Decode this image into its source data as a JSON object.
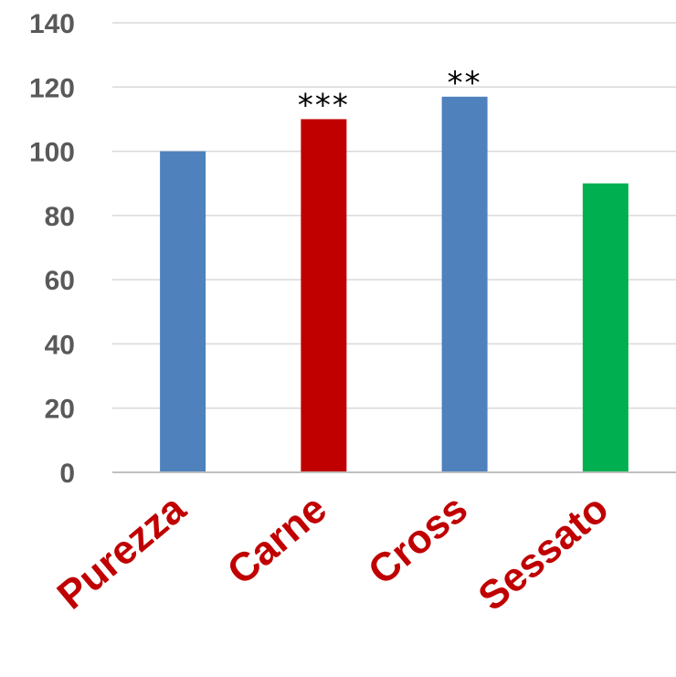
{
  "chart_data": {
    "type": "bar",
    "categories": [
      "Purezza",
      "Carne",
      "Cross",
      "Sessato"
    ],
    "values": [
      100,
      110,
      117,
      90
    ],
    "annotations": [
      "",
      "***",
      "**",
      ""
    ],
    "colors": [
      "#4f81bd",
      "#c00000",
      "#4f81bd",
      "#00b050"
    ],
    "ylim": [
      0,
      140
    ],
    "yticks": [
      "0",
      "20",
      "40",
      "60",
      "80",
      "100",
      "120",
      "140"
    ],
    "grid": true,
    "xtick_color": "#c00000"
  }
}
